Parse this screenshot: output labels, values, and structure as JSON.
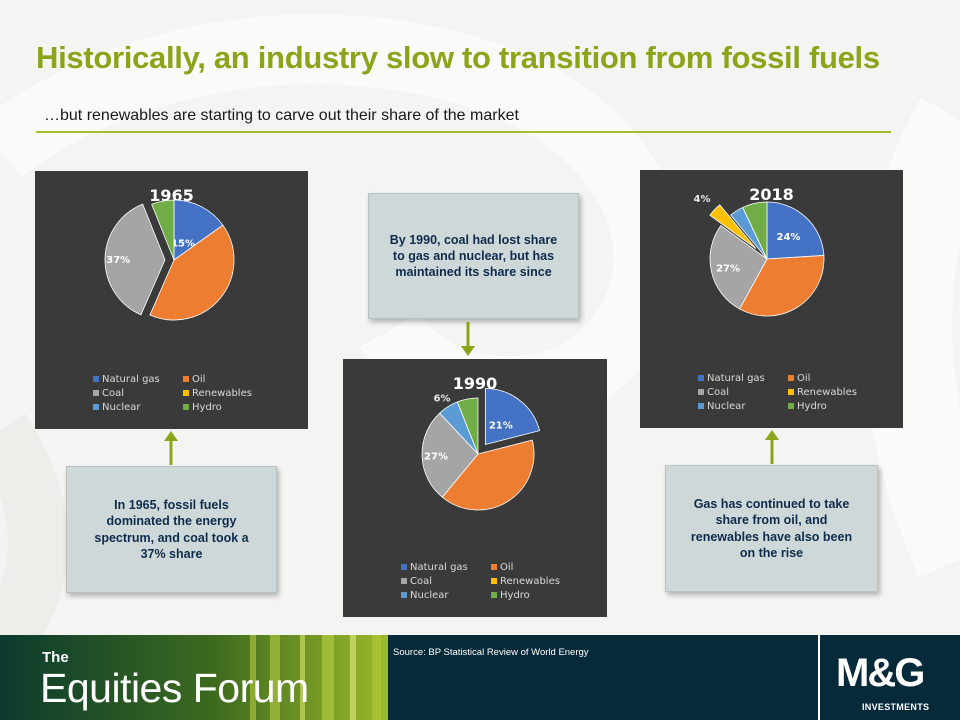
{
  "header": {
    "title": "Historically, an industry slow to transition from fossil fuels",
    "subtitle": "…but renewables are starting to carve out their share of the market"
  },
  "colors": {
    "accent": "#8aa51a",
    "chart_background": "#3a3a3a",
    "callout_background": "#cfd8d8",
    "callout_text": "#0d2c4c",
    "footer_background": "#062a39",
    "arrow": "#8aa51a"
  },
  "chart_data": [
    {
      "type": "pie",
      "title": "1965",
      "categories": [
        "Natural gas",
        "Oil",
        "Coal",
        "Renewables",
        "Nuclear",
        "Hydro"
      ],
      "values": [
        15,
        41,
        37,
        0,
        0,
        6
      ],
      "data_labels": [
        "15%",
        "",
        "37%",
        "",
        "",
        ""
      ],
      "colors": [
        "#4472c4",
        "#ed7d31",
        "#a5a5a5",
        "#ffc000",
        "#5b9bd5",
        "#70ad47"
      ],
      "legend_placement": "bottom"
    },
    {
      "type": "pie",
      "title": "1990",
      "categories": [
        "Natural gas",
        "Oil",
        "Coal",
        "Renewables",
        "Nuclear",
        "Hydro"
      ],
      "values": [
        21,
        40,
        27,
        0,
        6,
        6
      ],
      "data_labels": [
        "21%",
        "",
        "27%",
        "",
        "6%",
        ""
      ],
      "colors": [
        "#4472c4",
        "#ed7d31",
        "#a5a5a5",
        "#ffc000",
        "#5b9bd5",
        "#70ad47"
      ],
      "legend_placement": "bottom"
    },
    {
      "type": "pie",
      "title": "2018",
      "categories": [
        "Natural gas",
        "Oil",
        "Coal",
        "Renewables",
        "Nuclear",
        "Hydro"
      ],
      "values": [
        24,
        34,
        27,
        4,
        4,
        7
      ],
      "data_labels": [
        "24%",
        "",
        "27%",
        "4%",
        "",
        ""
      ],
      "colors": [
        "#4472c4",
        "#ed7d31",
        "#a5a5a5",
        "#ffc000",
        "#5b9bd5",
        "#70ad47"
      ],
      "legend_placement": "bottom"
    }
  ],
  "callouts": {
    "c1965": "In 1965, fossil fuels dominated the energy spectrum, and coal took a 37% share",
    "c1990": "By 1990, coal had lost share to gas and nuclear, but has maintained its share since",
    "c2018": "Gas has continued to take share from oil, and renewables have also been on the rise"
  },
  "footer": {
    "brand_the": "The",
    "brand_name": "Equities Forum",
    "source": "Source: BP Statistical Review of World Energy",
    "logo": "M&G",
    "logo_sub": "INVESTMENTS"
  }
}
